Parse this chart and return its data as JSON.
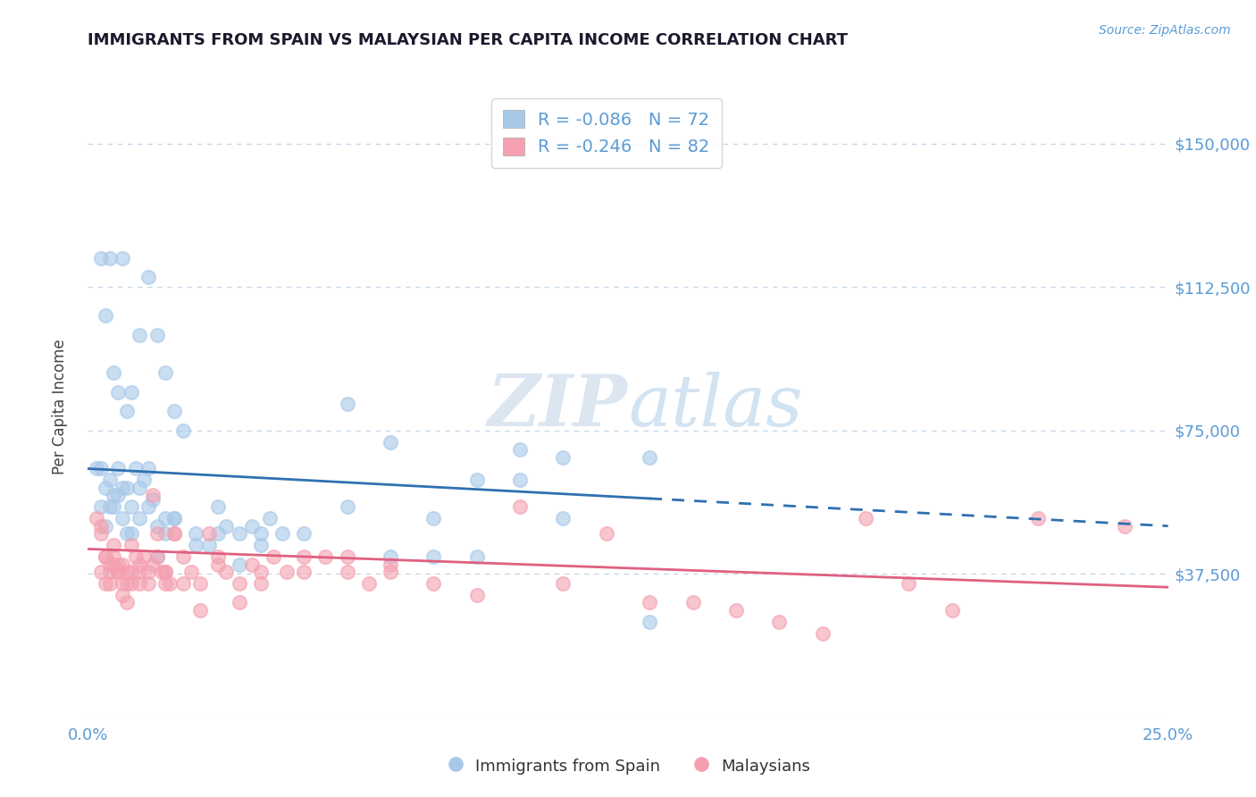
{
  "title": "IMMIGRANTS FROM SPAIN VS MALAYSIAN PER CAPITA INCOME CORRELATION CHART",
  "source_text": "Source: ZipAtlas.com",
  "ylabel": "Per Capita Income",
  "xlim": [
    0.0,
    0.25
  ],
  "ylim": [
    0,
    162500
  ],
  "xtick_values": [
    0.0,
    0.05,
    0.1,
    0.15,
    0.2,
    0.25
  ],
  "xtick_labels": [
    "0.0%",
    "",
    "",
    "",
    "",
    "25.0%"
  ],
  "ytick_values": [
    0,
    37500,
    75000,
    112500,
    150000
  ],
  "ytick_labels": [
    "",
    "$37,500",
    "$75,000",
    "$112,500",
    "$150,000"
  ],
  "blue_R": -0.086,
  "blue_N": 72,
  "pink_R": -0.246,
  "pink_N": 82,
  "blue_color": "#a8c8e8",
  "pink_color": "#f4a0b0",
  "trend_blue": "#3070b0",
  "trend_pink": "#e06080",
  "legend_label_blue": "Immigrants from Spain",
  "legend_label_pink": "Malaysians",
  "watermark_zip": "ZIP",
  "watermark_atlas": "atlas",
  "background_color": "#ffffff",
  "grid_color": "#c8d8e8",
  "axis_label_color": "#5b9bd5",
  "title_color": "#1a1a2e",
  "blue_x": [
    0.002,
    0.003,
    0.004,
    0.005,
    0.006,
    0.007,
    0.008,
    0.009,
    0.01,
    0.011,
    0.012,
    0.013,
    0.014,
    0.015,
    0.016,
    0.018,
    0.02,
    0.022,
    0.025,
    0.028,
    0.03,
    0.032,
    0.035,
    0.038,
    0.04,
    0.042,
    0.045,
    0.003,
    0.004,
    0.005,
    0.006,
    0.007,
    0.008,
    0.009,
    0.01,
    0.012,
    0.014,
    0.016,
    0.018,
    0.02,
    0.003,
    0.004,
    0.005,
    0.006,
    0.007,
    0.008,
    0.009,
    0.01,
    0.012,
    0.014,
    0.016,
    0.018,
    0.02,
    0.025,
    0.03,
    0.035,
    0.04,
    0.05,
    0.06,
    0.07,
    0.08,
    0.09,
    0.1,
    0.11,
    0.13,
    0.06,
    0.07,
    0.08,
    0.09,
    0.1,
    0.11,
    0.13
  ],
  "blue_y": [
    65000,
    65000,
    60000,
    55000,
    55000,
    65000,
    60000,
    60000,
    55000,
    65000,
    60000,
    62000,
    55000,
    57000,
    50000,
    48000,
    52000,
    75000,
    48000,
    45000,
    55000,
    50000,
    48000,
    50000,
    48000,
    52000,
    48000,
    120000,
    105000,
    120000,
    90000,
    85000,
    120000,
    80000,
    85000,
    100000,
    115000,
    100000,
    90000,
    80000,
    55000,
    50000,
    62000,
    58000,
    58000,
    52000,
    48000,
    48000,
    52000,
    65000,
    42000,
    52000,
    52000,
    45000,
    48000,
    40000,
    45000,
    48000,
    55000,
    42000,
    42000,
    42000,
    62000,
    68000,
    25000,
    82000,
    72000,
    52000,
    62000,
    70000,
    52000,
    68000
  ],
  "pink_x": [
    0.002,
    0.003,
    0.004,
    0.005,
    0.006,
    0.007,
    0.008,
    0.009,
    0.01,
    0.011,
    0.012,
    0.013,
    0.014,
    0.015,
    0.016,
    0.017,
    0.018,
    0.019,
    0.02,
    0.022,
    0.024,
    0.026,
    0.028,
    0.03,
    0.032,
    0.035,
    0.038,
    0.04,
    0.043,
    0.046,
    0.05,
    0.055,
    0.06,
    0.065,
    0.07,
    0.003,
    0.004,
    0.005,
    0.006,
    0.007,
    0.008,
    0.009,
    0.01,
    0.012,
    0.014,
    0.016,
    0.018,
    0.02,
    0.003,
    0.004,
    0.005,
    0.006,
    0.007,
    0.008,
    0.009,
    0.01,
    0.012,
    0.015,
    0.018,
    0.022,
    0.026,
    0.03,
    0.035,
    0.04,
    0.05,
    0.06,
    0.07,
    0.08,
    0.09,
    0.1,
    0.11,
    0.12,
    0.13,
    0.14,
    0.15,
    0.16,
    0.17,
    0.18,
    0.2,
    0.22,
    0.19,
    0.24
  ],
  "pink_y": [
    52000,
    48000,
    42000,
    40000,
    45000,
    40000,
    40000,
    38000,
    45000,
    42000,
    38000,
    42000,
    35000,
    40000,
    48000,
    38000,
    38000,
    35000,
    48000,
    42000,
    38000,
    35000,
    48000,
    42000,
    38000,
    35000,
    40000,
    38000,
    42000,
    38000,
    38000,
    42000,
    38000,
    35000,
    40000,
    50000,
    42000,
    38000,
    42000,
    38000,
    35000,
    35000,
    38000,
    35000,
    38000,
    42000,
    38000,
    48000,
    38000,
    35000,
    35000,
    40000,
    38000,
    32000,
    30000,
    35000,
    40000,
    58000,
    35000,
    35000,
    28000,
    40000,
    30000,
    35000,
    42000,
    42000,
    38000,
    35000,
    32000,
    55000,
    35000,
    48000,
    30000,
    30000,
    28000,
    25000,
    22000,
    52000,
    28000,
    52000,
    35000,
    50000
  ]
}
